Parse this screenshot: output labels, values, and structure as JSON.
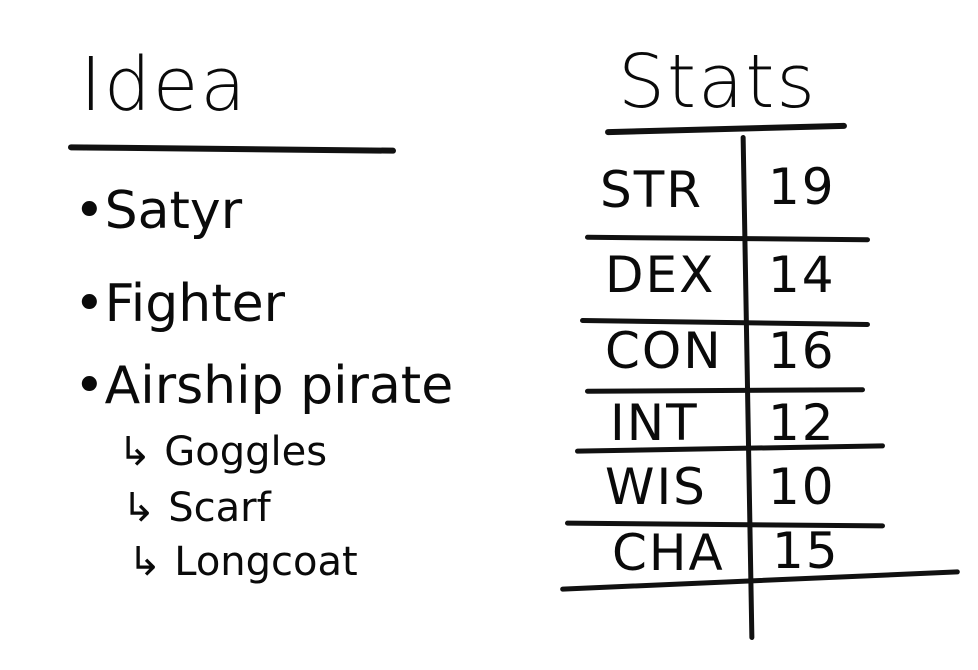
{
  "idea": {
    "title": "Idea",
    "items": [
      {
        "bullet": "•",
        "label": "Satyr"
      },
      {
        "bullet": "•",
        "label": "Fighter"
      },
      {
        "bullet": "•",
        "label": "Airship pirate"
      }
    ],
    "subitems": [
      {
        "arrow": "↳",
        "label": "Goggles"
      },
      {
        "arrow": "↳",
        "label": "Scarf"
      },
      {
        "arrow": "↳",
        "label": "Longcoat"
      }
    ]
  },
  "stats": {
    "title": "Stats",
    "rows": [
      {
        "name": "STR",
        "value": "19"
      },
      {
        "name": "DEX",
        "value": "14"
      },
      {
        "name": "CON",
        "value": "16"
      },
      {
        "name": "INT",
        "value": "12"
      },
      {
        "name": "WIS",
        "value": "10"
      },
      {
        "name": "CHA",
        "value": "15"
      }
    ]
  }
}
